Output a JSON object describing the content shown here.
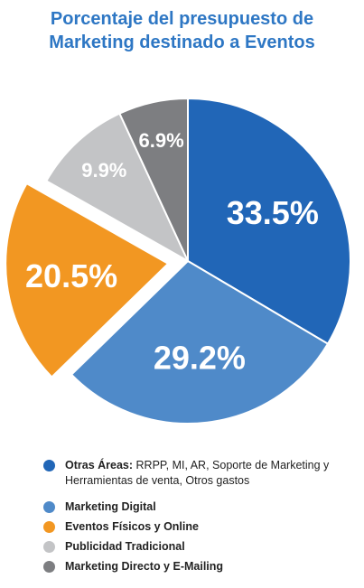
{
  "chart_data": {
    "type": "pie",
    "title_line1": "Porcentaje del presupuesto de",
    "title_line2": "Marketing destinado a Eventos",
    "slices": [
      {
        "label": "Otras Áreas:",
        "detail": "RRPP, MI, AR, Soporte de Marketing y Herramientas de venta, Otros gastos",
        "value": 33.5,
        "display": "33.5%",
        "color": "#2166b7",
        "exploded": false
      },
      {
        "label": "Marketing Digital",
        "detail": "",
        "value": 29.2,
        "display": "29.2%",
        "color": "#4f8ac9",
        "exploded": false
      },
      {
        "label": "Eventos Físicos y Online",
        "detail": "",
        "value": 20.5,
        "display": "20.5%",
        "color": "#f29722",
        "exploded": true
      },
      {
        "label": "Publicidad Tradicional",
        "detail": "",
        "value": 9.9,
        "display": "9.9%",
        "color": "#c3c4c6",
        "exploded": false
      },
      {
        "label": "Marketing Directo y E-Mailing",
        "detail": "",
        "value": 6.9,
        "display": "6.9%",
        "color": "#7d7e81",
        "exploded": false
      }
    ]
  }
}
